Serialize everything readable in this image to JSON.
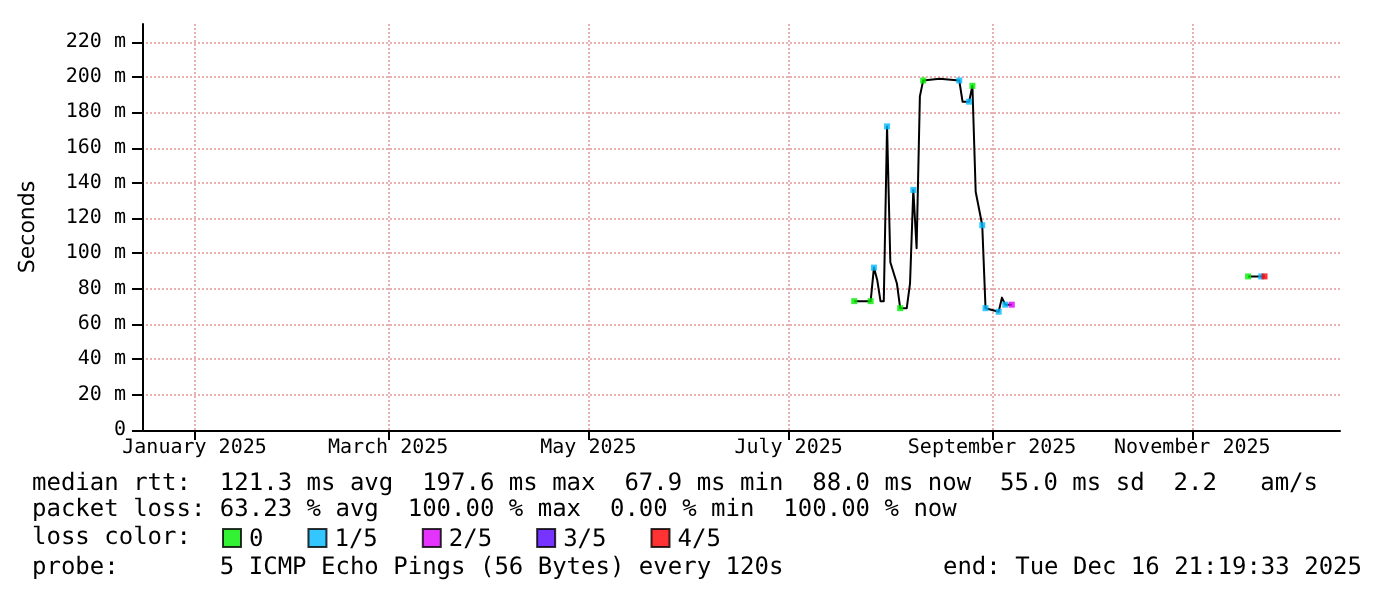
{
  "chart_data": {
    "type": "line",
    "ylabel": "Seconds",
    "xlim": [
      "2024-12-16",
      "2025-12-16"
    ],
    "xticks": [
      {
        "value": "2025-01-01",
        "label": "January 2025"
      },
      {
        "value": "2025-03-01",
        "label": "March 2025"
      },
      {
        "value": "2025-05-01",
        "label": "May 2025"
      },
      {
        "value": "2025-07-01",
        "label": "July 2025"
      },
      {
        "value": "2025-09-01",
        "label": "September 2025"
      },
      {
        "value": "2025-11-01",
        "label": "November 2025"
      }
    ],
    "ylim": [
      0,
      230
    ],
    "yticks": [
      0,
      {
        "value": 20,
        "label": "20 m"
      },
      {
        "value": 40,
        "label": "40 m"
      },
      {
        "value": 60,
        "label": "60 m"
      },
      {
        "value": 80,
        "label": "80 m"
      },
      {
        "value": 100,
        "label": "100 m"
      },
      {
        "value": 120,
        "label": "120 m"
      },
      {
        "value": 140,
        "label": "140 m"
      },
      {
        "value": 160,
        "label": "160 m"
      },
      {
        "value": 180,
        "label": "180 m"
      },
      {
        "value": 200,
        "label": "200 m"
      },
      {
        "value": 220,
        "label": "220 m"
      }
    ],
    "grid": true,
    "legend": "bottom left",
    "legend_title": "loss color:",
    "series": [
      {
        "color": "#000000",
        "x": [
          "2025-07-21",
          "2025-07-26",
          "2025-07-27",
          "2025-07-28",
          "2025-07-29",
          "2025-07-30",
          "2025-07-31",
          "2025-08-01",
          "2025-08-03",
          "2025-08-04",
          "2025-08-06",
          "2025-08-07",
          "2025-08-08",
          "2025-08-09",
          "2025-08-10",
          "2025-08-11",
          "2025-08-16",
          "2025-08-22",
          "2025-08-23",
          "2025-08-25",
          "2025-08-26",
          "2025-08-27",
          "2025-08-29",
          "2025-08-30",
          "2025-09-03",
          "2025-09-04",
          "2025-09-05",
          "2025-09-07",
          "2025-09-08",
          "2025-11-18",
          "2025-11-23"
        ],
        "values": [
          73,
          73,
          92,
          85,
          73,
          73,
          172,
          95,
          83,
          69,
          69,
          83,
          136,
          103,
          189,
          198,
          199,
          198,
          186,
          186,
          195,
          135,
          116,
          69,
          67,
          75,
          71,
          71,
          null,
          87,
          87
        ]
      },
      {
        "type": "scatter",
        "marker": "square",
        "name": "0",
        "color": "#00ee00",
        "x": [
          "2025-07-21",
          "2025-07-26",
          "2025-08-04",
          "2025-08-11",
          "2025-08-26",
          "2025-11-18"
        ],
        "values": [
          73,
          73,
          69,
          198,
          195,
          87
        ]
      },
      {
        "type": "scatter",
        "marker": "square",
        "name": "1/5",
        "color": "#00b8ff",
        "x": [
          "2025-07-27",
          "2025-07-31",
          "2025-08-08",
          "2025-08-22",
          "2025-08-25",
          "2025-08-29",
          "2025-08-30",
          "2025-09-03",
          "2025-09-05",
          "2025-11-22"
        ],
        "values": [
          92,
          172,
          136,
          198,
          186,
          116,
          69,
          67,
          71,
          87
        ]
      },
      {
        "type": "scatter",
        "marker": "square",
        "name": "2/5",
        "color": "#dd00ff",
        "x": [
          "2025-09-07"
        ],
        "values": [
          71
        ]
      },
      {
        "type": "scatter",
        "marker": "square",
        "name": "3/5",
        "color": "#5500ff"
      },
      {
        "type": "scatter",
        "marker": "square",
        "name": "4/5",
        "color": "#ff0000",
        "x": [
          "2025-11-23"
        ],
        "values": [
          87
        ]
      }
    ],
    "annotations": [
      "median rtt:  121.3 ms avg  197.6 ms max  67.9 ms min  88.0 ms now  55.0 ms sd  2.2   am/s",
      "packet loss: 63.23 % avg  100.00 % max  0.00 % min  100.00 % now",
      "probe:       5 ICMP Echo Pings (56 Bytes) every 120s",
      "end: Tue Dec 16 21:19:33 2025"
    ]
  }
}
